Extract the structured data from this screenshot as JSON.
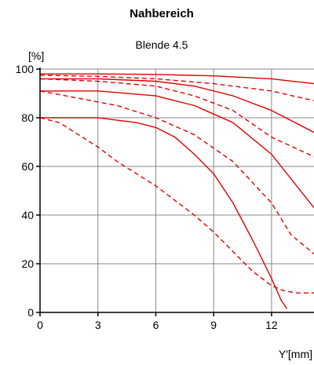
{
  "chart_data": {
    "type": "line",
    "title": "Nahbereich",
    "subtitle": "Blende 4.5",
    "xlabel": "Y'[mm]",
    "ylabel": "[%]",
    "xlim": [
      0,
      14.2
    ],
    "ylim": [
      0,
      100
    ],
    "xticks": [
      0,
      3,
      6,
      9,
      12
    ],
    "yticks": [
      0,
      20,
      40,
      60,
      80,
      100
    ],
    "grid": true,
    "colors": {
      "series": "#e00000",
      "grid": "#888888",
      "axis": "#000000"
    },
    "series": [
      {
        "style": "solid",
        "points": [
          [
            0,
            98
          ],
          [
            3,
            98
          ],
          [
            6,
            97.8
          ],
          [
            9,
            97.2
          ],
          [
            12,
            96
          ],
          [
            14.2,
            94
          ]
        ]
      },
      {
        "style": "dashed",
        "points": [
          [
            0,
            97.5
          ],
          [
            3,
            97
          ],
          [
            6,
            96
          ],
          [
            9,
            94
          ],
          [
            12,
            91
          ],
          [
            14.2,
            87
          ]
        ]
      },
      {
        "style": "solid",
        "points": [
          [
            0,
            96
          ],
          [
            3,
            96
          ],
          [
            6,
            95
          ],
          [
            8,
            93
          ],
          [
            10,
            89
          ],
          [
            12,
            83
          ],
          [
            14.2,
            74
          ]
        ]
      },
      {
        "style": "dashed",
        "points": [
          [
            0,
            96
          ],
          [
            3,
            95
          ],
          [
            6,
            93
          ],
          [
            8,
            89
          ],
          [
            10,
            83
          ],
          [
            12,
            72
          ],
          [
            14.2,
            64
          ]
        ]
      },
      {
        "style": "solid",
        "points": [
          [
            0,
            91
          ],
          [
            3,
            91
          ],
          [
            6,
            89
          ],
          [
            8,
            85
          ],
          [
            10,
            78
          ],
          [
            12,
            65
          ],
          [
            14.2,
            43
          ]
        ]
      },
      {
        "style": "dashed",
        "points": [
          [
            0,
            91
          ],
          [
            2,
            88
          ],
          [
            4,
            85
          ],
          [
            6,
            80
          ],
          [
            8,
            73
          ],
          [
            10,
            62
          ],
          [
            12,
            45
          ],
          [
            13,
            32
          ],
          [
            14.2,
            24
          ]
        ]
      },
      {
        "style": "solid",
        "points": [
          [
            0,
            80
          ],
          [
            3,
            80
          ],
          [
            5,
            78
          ],
          [
            6,
            76
          ],
          [
            7,
            72
          ],
          [
            8,
            65
          ],
          [
            9,
            57
          ],
          [
            10,
            45
          ],
          [
            11,
            30
          ],
          [
            12,
            14
          ],
          [
            12.5,
            5
          ],
          [
            12.8,
            1.5
          ]
        ]
      },
      {
        "style": "dashed",
        "points": [
          [
            0,
            80
          ],
          [
            1,
            78
          ],
          [
            2,
            73
          ],
          [
            3,
            68
          ],
          [
            4,
            62
          ],
          [
            5,
            57
          ],
          [
            6,
            52
          ],
          [
            7,
            46
          ],
          [
            8,
            40
          ],
          [
            9,
            33
          ],
          [
            10,
            25
          ],
          [
            11,
            17
          ],
          [
            12,
            11
          ],
          [
            12.6,
            9
          ],
          [
            13.3,
            8
          ],
          [
            14.2,
            8
          ]
        ]
      }
    ]
  }
}
